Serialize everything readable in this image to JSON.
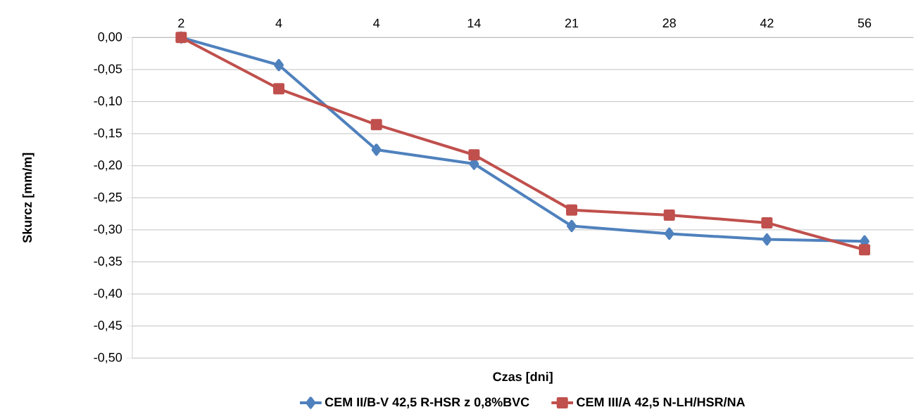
{
  "chart_data": {
    "type": "line",
    "xlabel": "Czas [dni]",
    "ylabel": "Skurcz [mm/m]",
    "categories": [
      "2",
      "4",
      "4",
      "14",
      "21",
      "28",
      "42",
      "56"
    ],
    "series": [
      {
        "name": "CEM II/B-V 42,5 R-HSR z 0,8%BVC",
        "color": "#4f81bd",
        "marker": "diamond",
        "values": [
          0,
          -0.043,
          -0.175,
          -0.197,
          -0.294,
          -0.306,
          -0.315,
          -0.318
        ]
      },
      {
        "name": "CEM III/A 42,5 N-LH/HSR/NA",
        "color": "#c0504d",
        "marker": "square",
        "values": [
          0,
          -0.08,
          -0.136,
          -0.183,
          -0.269,
          -0.277,
          -0.289,
          -0.331
        ]
      }
    ],
    "ylim": [
      -0.5,
      0
    ],
    "yticks": [
      {
        "value": -0.5,
        "label": "-0,50"
      },
      {
        "value": -0.45,
        "label": "-0,45"
      },
      {
        "value": -0.4,
        "label": "-0,40"
      },
      {
        "value": -0.35,
        "label": "-0,35"
      },
      {
        "value": -0.3,
        "label": "-0,30"
      },
      {
        "value": -0.25,
        "label": "-0,25"
      },
      {
        "value": -0.2,
        "label": "-0,20"
      },
      {
        "value": -0.15,
        "label": "-0,15"
      },
      {
        "value": -0.1,
        "label": "-0,10"
      },
      {
        "value": -0.05,
        "label": "-0,05"
      },
      {
        "value": 0,
        "label": "0,00"
      }
    ],
    "grid": "y",
    "legend": "bottom"
  }
}
